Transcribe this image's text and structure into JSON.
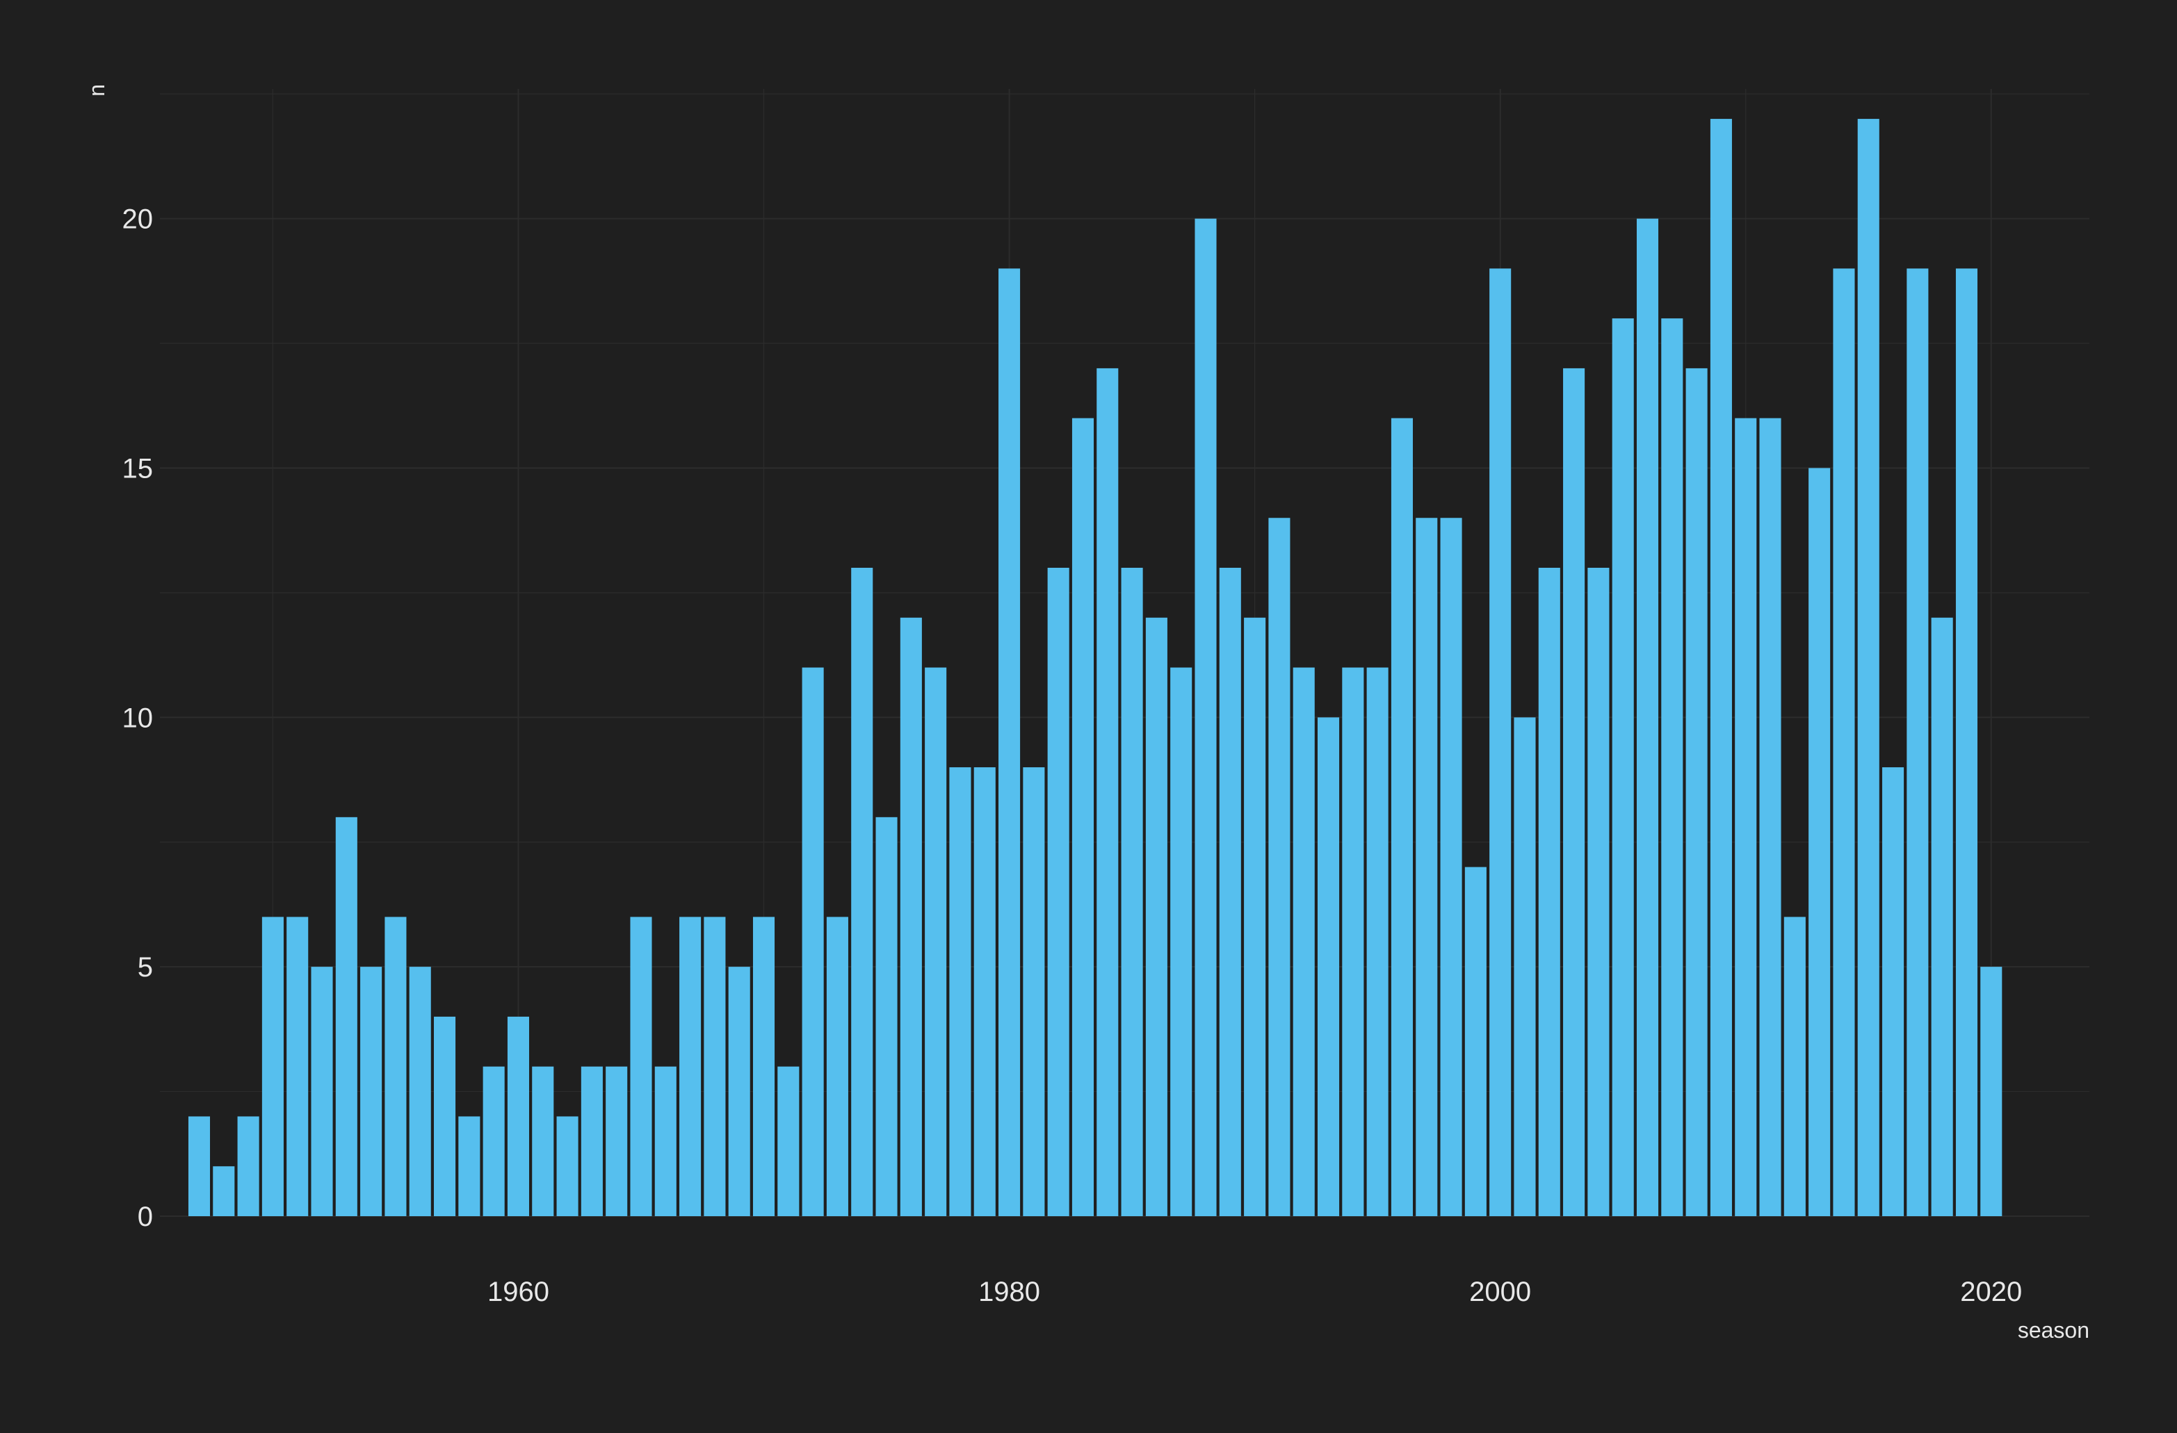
{
  "chart_data": {
    "type": "bar",
    "title": "",
    "xlabel": "season",
    "ylabel": "n",
    "x": [
      1947,
      1948,
      1949,
      1950,
      1951,
      1952,
      1953,
      1954,
      1955,
      1956,
      1957,
      1958,
      1959,
      1960,
      1961,
      1962,
      1963,
      1964,
      1965,
      1966,
      1967,
      1968,
      1969,
      1970,
      1971,
      1972,
      1973,
      1974,
      1975,
      1976,
      1977,
      1978,
      1979,
      1980,
      1981,
      1982,
      1983,
      1984,
      1985,
      1986,
      1987,
      1988,
      1989,
      1990,
      1991,
      1992,
      1993,
      1994,
      1995,
      1996,
      1997,
      1998,
      1999,
      2000,
      2001,
      2002,
      2003,
      2004,
      2005,
      2006,
      2007,
      2008,
      2009,
      2010,
      2011,
      2012,
      2013,
      2014,
      2015,
      2016,
      2017,
      2018,
      2019,
      2020
    ],
    "values": [
      2,
      1,
      2,
      6,
      6,
      5,
      8,
      5,
      6,
      5,
      4,
      2,
      3,
      4,
      3,
      2,
      3,
      3,
      6,
      3,
      6,
      6,
      5,
      6,
      3,
      11,
      6,
      13,
      8,
      12,
      11,
      9,
      9,
      19,
      9,
      13,
      16,
      17,
      13,
      12,
      11,
      20,
      13,
      12,
      14,
      11,
      10,
      11,
      11,
      16,
      14,
      14,
      7,
      19,
      10,
      13,
      17,
      13,
      18,
      20,
      18,
      17,
      22,
      16,
      16,
      6,
      15,
      19,
      22,
      9,
      19,
      12,
      19,
      5
    ],
    "xlim": [
      1945.4,
      2024
    ],
    "ylim": [
      0,
      22.6
    ],
    "x_ticks": [
      1960,
      1980,
      2000,
      2020
    ],
    "y_ticks": [
      0,
      5,
      10,
      15,
      20
    ],
    "bar_color": "#56bfee",
    "grid": true,
    "legend": "none"
  },
  "colors": {
    "background": "#1f1f1f",
    "grid": "#2c2c2c",
    "text": "#e8e8e8"
  }
}
